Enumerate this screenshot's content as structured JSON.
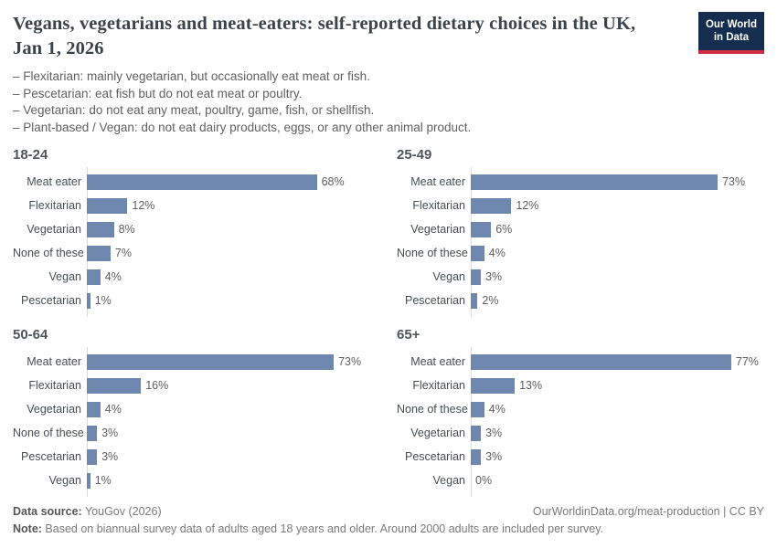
{
  "header": {
    "title": "Vegans, vegetarians and meat-eaters: self-reported dietary choices in the UK, Jan 1, 2026",
    "logo": {
      "line1": "Our World",
      "line2": "in Data"
    }
  },
  "subtitle_lines": [
    "– Flexitarian: mainly vegetarian, but occasionally eat meat or fish.",
    "– Pescetarian: eat fish but do not eat meat or poultry.",
    "– Vegetarian: do not eat any meat, poultry, game, fish, or shellfish.",
    "– Plant-based / Vegan: do not eat dairy products, eggs, or any other animal product."
  ],
  "chart_data": [
    {
      "type": "bar",
      "orientation": "horizontal",
      "title": "18-24",
      "categories": [
        "Meat eater",
        "Flexitarian",
        "Vegetarian",
        "None of these",
        "Vegan",
        "Pescetarian"
      ],
      "values": [
        68,
        12,
        8,
        7,
        4,
        1
      ],
      "unit": "%",
      "xlim": [
        0,
        100
      ],
      "grid": false,
      "legend": "none"
    },
    {
      "type": "bar",
      "orientation": "horizontal",
      "title": "25-49",
      "categories": [
        "Meat eater",
        "Flexitarian",
        "Vegetarian",
        "None of these",
        "Vegan",
        "Pescetarian"
      ],
      "values": [
        73,
        12,
        6,
        4,
        3,
        2
      ],
      "unit": "%",
      "xlim": [
        0,
        100
      ],
      "grid": false,
      "legend": "none"
    },
    {
      "type": "bar",
      "orientation": "horizontal",
      "title": "50-64",
      "categories": [
        "Meat eater",
        "Flexitarian",
        "Vegetarian",
        "None of these",
        "Pescetarian",
        "Vegan"
      ],
      "values": [
        73,
        16,
        4,
        3,
        3,
        1
      ],
      "unit": "%",
      "xlim": [
        0,
        100
      ],
      "grid": false,
      "legend": "none"
    },
    {
      "type": "bar",
      "orientation": "horizontal",
      "title": "65+",
      "categories": [
        "Meat eater",
        "Flexitarian",
        "None of these",
        "Vegetarian",
        "Pescetarian",
        "Vegan"
      ],
      "values": [
        77,
        13,
        4,
        3,
        3,
        0
      ],
      "unit": "%",
      "xlim": [
        0,
        100
      ],
      "grid": false,
      "legend": "none"
    }
  ],
  "footer": {
    "source_label": "Data source:",
    "source_value": " YouGov (2026)",
    "attribution": "OurWorldinData.org/meat-production | CC BY",
    "note_label": "Note:",
    "note_value": " Based on biannual survey data of adults aged 18 years and older. Around 2000 adults are included per survey."
  },
  "colors": {
    "bar": "#6d87ae",
    "axis": "#dadada",
    "logo_background": "#152e4f",
    "logo_stripe": "#d12f3e",
    "title_text": "#3d434b"
  }
}
